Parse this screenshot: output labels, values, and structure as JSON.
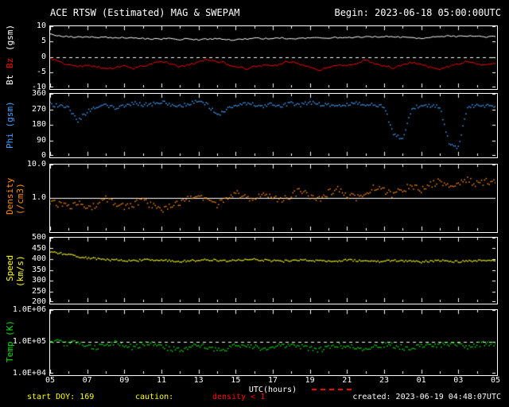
{
  "header": {
    "title": "ACE RTSW (Estimated) MAG & SWEPAM",
    "begin_label": "Begin: 2023-06-18 05:00:00UTC"
  },
  "footer": {
    "start_doy": "start DOY: 169",
    "caution_label": "caution:",
    "caution_value": "density < 1",
    "created": "created: 2023-06-19 04:48:07UTC"
  },
  "colors": {
    "background": "#000000",
    "axes": "#ffffff",
    "bt": "#ffffff",
    "bz": "#ff0000",
    "phi": "#44a0ff",
    "density": "#ff8c00",
    "speed": "#ffff00",
    "temp": "#00dd00",
    "caution_text": "#ffff00",
    "alert_text": "#ff0000"
  },
  "chart_data": {
    "type": "line",
    "x": {
      "start_hour": 5,
      "end_hour": 29,
      "step_hours": 0.5,
      "tick_interval_hours": 2,
      "tick_labels": [
        "05",
        "07",
        "09",
        "11",
        "13",
        "15",
        "17",
        "19",
        "21",
        "23",
        "01",
        "03",
        "05"
      ],
      "axis_title": "UTC(hours)"
    },
    "panels": [
      {
        "id": "mag",
        "type": "line",
        "ylabel_parts": [
          {
            "text": "Bt",
            "color": "#ffffff"
          },
          {
            "text": "Bz",
            "color": "#ff0000"
          },
          {
            "text": "(gsm)",
            "color": "#ffffff"
          }
        ],
        "scale": "linear",
        "ylim": [
          -10,
          10
        ],
        "yticks": [
          {
            "v": 10,
            "label": "10"
          },
          {
            "v": 5,
            "label": "5"
          },
          {
            "v": 0,
            "label": "0"
          },
          {
            "v": -5,
            "label": "-5"
          },
          {
            "v": -10,
            "label": "-10"
          }
        ],
        "ref_lines": [
          {
            "v": 0,
            "style": "dashed"
          }
        ],
        "series": [
          {
            "name": "Bt",
            "color": "#ffffff",
            "style": "line",
            "spread": 0.012,
            "values": [
              7.3,
              6.9,
              6.6,
              6.4,
              6.5,
              6.3,
              6.4,
              6.2,
              6.3,
              6.1,
              6.0,
              5.9,
              5.8,
              6.0,
              5.7,
              5.9,
              5.6,
              5.8,
              6.0,
              5.7,
              5.5,
              5.8,
              6.1,
              5.9,
              6.0,
              6.2,
              5.9,
              6.1,
              6.0,
              6.2,
              6.1,
              6.3,
              6.2,
              6.4,
              6.6,
              6.5,
              6.7,
              6.6,
              6.4,
              6.2,
              6.0,
              6.3,
              6.6,
              6.8,
              6.6,
              6.9,
              6.7,
              6.5,
              6.6
            ]
          },
          {
            "name": "Bz",
            "color": "#ff0000",
            "style": "line",
            "spread": 0.02,
            "values": [
              -0.6,
              -1.8,
              -2.8,
              -3.4,
              -2.6,
              -3.2,
              -4.1,
              -3.6,
              -2.8,
              -3.8,
              -3.0,
              -2.2,
              -1.2,
              -2.4,
              -3.2,
              -2.6,
              -1.6,
              -0.8,
              -1.4,
              -2.2,
              -3.2,
              -4.0,
              -3.4,
              -2.6,
              -3.0,
              -2.2,
              -1.6,
              -2.6,
              -3.6,
              -4.4,
              -3.4,
              -2.6,
              -3.1,
              -2.1,
              -1.1,
              -2.0,
              -3.0,
              -3.6,
              -2.8,
              -1.8,
              -2.6,
              -3.4,
              -4.1,
              -3.1,
              -2.1,
              -1.4,
              -2.4,
              -2.9,
              -2.2
            ]
          }
        ]
      },
      {
        "id": "phi",
        "type": "scatter",
        "ylabel_parts": [
          {
            "text": "Phi (gsm)",
            "color": "#44a0ff"
          }
        ],
        "scale": "linear",
        "ylim": [
          0,
          360
        ],
        "yticks": [
          {
            "v": 360,
            "label": "360"
          },
          {
            "v": 270,
            "label": "270"
          },
          {
            "v": 180,
            "label": "180"
          },
          {
            "v": 90,
            "label": "90"
          },
          {
            "v": 0,
            "label": "0"
          }
        ],
        "ref_lines": [],
        "series": [
          {
            "name": "Phi",
            "color": "#44a0ff",
            "style": "dots",
            "spread": 0.03,
            "values": [
              300,
              290,
              275,
              205,
              255,
              285,
              295,
              280,
              290,
              305,
              295,
              300,
              310,
              298,
              285,
              305,
              318,
              295,
              235,
              265,
              295,
              308,
              298,
              288,
              300,
              292,
              304,
              296,
              308,
              300,
              292,
              286,
              296,
              304,
              292,
              300,
              282,
              130,
              100,
              272,
              298,
              290,
              284,
              70,
              50,
              282,
              294,
              290,
              286
            ]
          }
        ]
      },
      {
        "id": "density",
        "type": "scatter",
        "ylabel_parts": [
          {
            "text": "Density (/cm3)",
            "color": "#ff8c00"
          }
        ],
        "scale": "log",
        "ylim": [
          0.1,
          10
        ],
        "yticks": [
          {
            "v": 10,
            "label": "10.0"
          },
          {
            "v": 1,
            "label": "1.0"
          }
        ],
        "ref_lines": [
          {
            "v": 1,
            "style": "solid"
          }
        ],
        "series": [
          {
            "name": "Density",
            "color": "#ff8c00",
            "style": "dots",
            "spread": 0.05,
            "values": [
              0.8,
              0.6,
              0.5,
              0.7,
              0.45,
              0.6,
              0.9,
              0.7,
              0.5,
              0.62,
              0.8,
              0.55,
              0.42,
              0.6,
              0.72,
              0.9,
              1.2,
              0.85,
              0.6,
              1.0,
              1.4,
              1.1,
              0.9,
              1.3,
              1.0,
              0.8,
              1.2,
              1.6,
              1.1,
              0.9,
              1.4,
              1.8,
              1.2,
              1.0,
              1.5,
              2.0,
              1.6,
              1.2,
              1.8,
              2.2,
              1.7,
              2.4,
              3.0,
              2.2,
              2.8,
              3.4,
              2.6,
              3.1,
              2.8
            ]
          }
        ]
      },
      {
        "id": "speed",
        "type": "scatter",
        "ylabel_parts": [
          {
            "text": "Speed (km/s)",
            "color": "#ffff00"
          }
        ],
        "scale": "linear",
        "ylim": [
          200,
          500
        ],
        "yticks": [
          {
            "v": 500,
            "label": "500"
          },
          {
            "v": 450,
            "label": "450"
          },
          {
            "v": 400,
            "label": "400"
          },
          {
            "v": 350,
            "label": "350"
          },
          {
            "v": 300,
            "label": "300"
          },
          {
            "v": 250,
            "label": "250"
          },
          {
            "v": 200,
            "label": "200"
          }
        ],
        "ref_lines": [],
        "series": [
          {
            "name": "Speed",
            "color": "#ffff00",
            "style": "dots",
            "spread": 0.015,
            "values": [
              436,
              428,
              420,
              412,
              406,
              401,
              398,
              396,
              394,
              392,
              395,
              398,
              396,
              393,
              390,
              392,
              395,
              397,
              394,
              391,
              393,
              396,
              398,
              395,
              392,
              390,
              393,
              396,
              394,
              391,
              389,
              392,
              395,
              393,
              390,
              388,
              391,
              394,
              392,
              389,
              387,
              390,
              393,
              391,
              388,
              390,
              393,
              395,
              392
            ]
          }
        ]
      },
      {
        "id": "temp",
        "type": "scatter",
        "ylabel_parts": [
          {
            "text": "Temp (K)",
            "color": "#00dd00"
          }
        ],
        "scale": "log",
        "ylim": [
          10000,
          1000000
        ],
        "yticks": [
          {
            "v": 1000000,
            "label": "1.0E+06"
          },
          {
            "v": 100000,
            "label": "1.0E+05"
          },
          {
            "v": 10000,
            "label": "1.0E+04"
          }
        ],
        "ref_lines": [
          {
            "v": 100000,
            "style": "dashed"
          }
        ],
        "series": [
          {
            "name": "Temp",
            "color": "#00dd00",
            "style": "dots",
            "spread": 0.04,
            "values": [
              115000,
              95000,
              85000,
              100000,
              78000,
              65000,
              82000,
              92000,
              76000,
              66000,
              86000,
              95000,
              72000,
              61000,
              56000,
              70000,
              81000,
              66000,
              52000,
              61000,
              76000,
              86000,
              71000,
              61000,
              66000,
              76000,
              81000,
              71000,
              61000,
              56000,
              66000,
              76000,
              71000,
              66000,
              61000,
              71000,
              81000,
              76000,
              66000,
              61000,
              71000,
              76000,
              81000,
              86000,
              76000,
              71000,
              81000,
              91000,
              86000
            ]
          }
        ]
      }
    ]
  }
}
